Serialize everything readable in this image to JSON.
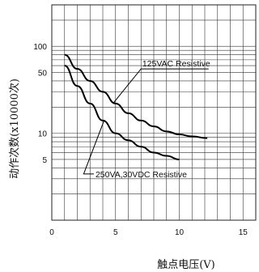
{
  "chart_data": {
    "type": "line",
    "title": "",
    "xlabel": "触点电压(V)",
    "ylabel": "动作次数(x10000次)",
    "xlim": [
      0,
      16
    ],
    "ylim": [
      1,
      300
    ],
    "y_scale": "log",
    "grid": true,
    "x_ticks": [
      "0",
      "5",
      "10",
      "15"
    ],
    "y_ticks": [
      "100",
      "50",
      "10",
      "5"
    ],
    "series": [
      {
        "name": "125VAC Resistive",
        "x": [
          1,
          2,
          3,
          4,
          5,
          6,
          7,
          8,
          9,
          10,
          11,
          12.2
        ],
        "y": [
          80,
          55,
          40,
          30,
          22,
          17,
          14,
          12,
          10.5,
          9.7,
          9.2,
          8.8
        ]
      },
      {
        "name": "250VA,30VDC Resistive",
        "x": [
          1,
          2,
          3,
          4,
          5,
          6,
          7,
          8,
          9,
          10
        ],
        "y": [
          60,
          35,
          22,
          14,
          10,
          8.3,
          7,
          6,
          5.5,
          5
        ]
      }
    ]
  }
}
